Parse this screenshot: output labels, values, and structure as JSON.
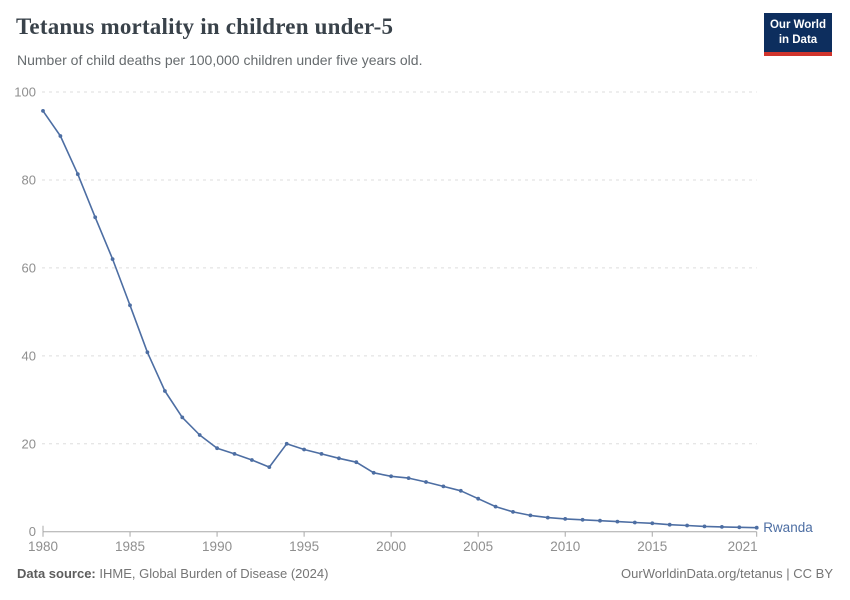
{
  "header": {
    "title": "Tetanus mortality in children under-5",
    "subtitle": "Number of child deaths per 100,000 children under five years old."
  },
  "logo": {
    "line1": "Our World",
    "line2": "in Data"
  },
  "chart_data": {
    "type": "line",
    "title": "Tetanus mortality in children under-5",
    "xlabel": "",
    "ylabel": "Number of child deaths per 100,000 children under five years old",
    "xlim": [
      1980,
      2021
    ],
    "ylim": [
      0,
      100
    ],
    "grid": "horizontal-dashed",
    "legend": "end-of-line-label",
    "x_ticks": [
      1980,
      1985,
      1990,
      1995,
      2000,
      2005,
      2010,
      2015,
      2021
    ],
    "y_ticks": [
      0,
      20,
      40,
      60,
      80,
      100
    ],
    "x": [
      1980,
      1981,
      1982,
      1983,
      1984,
      1985,
      1986,
      1987,
      1988,
      1989,
      1990,
      1991,
      1992,
      1993,
      1994,
      1995,
      1996,
      1997,
      1998,
      1999,
      2000,
      2001,
      2002,
      2003,
      2004,
      2005,
      2006,
      2007,
      2008,
      2009,
      2010,
      2011,
      2012,
      2013,
      2014,
      2015,
      2016,
      2017,
      2018,
      2019,
      2020,
      2021
    ],
    "series": [
      {
        "name": "Rwanda",
        "color": "#4d6ea3",
        "values": [
          95.7,
          90.0,
          81.3,
          71.5,
          62.0,
          51.5,
          40.8,
          32.0,
          26.0,
          22.0,
          19.0,
          17.7,
          16.3,
          14.7,
          20.0,
          18.7,
          17.7,
          16.7,
          15.8,
          13.4,
          12.6,
          12.2,
          11.3,
          10.3,
          9.3,
          7.5,
          5.7,
          4.5,
          3.7,
          3.2,
          2.9,
          2.7,
          2.5,
          2.3,
          2.1,
          1.9,
          1.6,
          1.4,
          1.2,
          1.1,
          1.0,
          0.9
        ]
      }
    ]
  },
  "footer": {
    "source_label": "Data source:",
    "source_text": " IHME, Global Burden of Disease (2024)",
    "right_text": "OurWorldinData.org/tetanus | CC BY"
  },
  "colors": {
    "line": "#4d6ea3",
    "entity_label": "#4d6ea3",
    "gridline": "#dddddd",
    "axis_line": "#a8a8a8",
    "tick_label": "#8f8f8f",
    "logo_bg": "#0d2e5e",
    "logo_red": "#d0342c",
    "title": "#39424a"
  }
}
